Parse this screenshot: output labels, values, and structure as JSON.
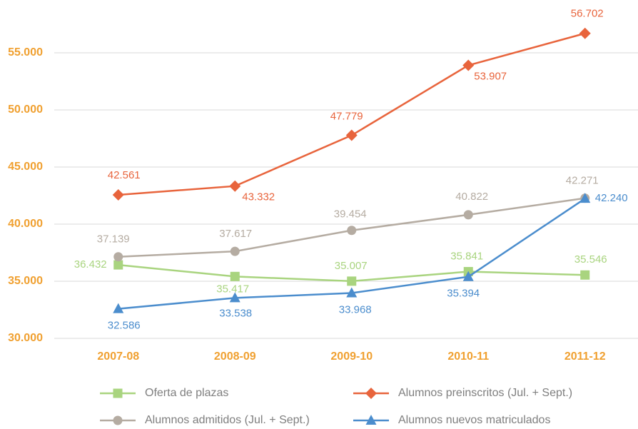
{
  "chart_data": {
    "type": "line",
    "categories": [
      "2007-08",
      "2008-09",
      "2009-10",
      "2010-11",
      "2011-12"
    ],
    "series": [
      {
        "name": "Oferta de plazas",
        "color": "#a9d47f",
        "marker": "square",
        "values": [
          36432,
          35417,
          35007,
          35841,
          35546
        ],
        "value_labels": [
          "36.432",
          "35.417",
          "35.007",
          "35.841",
          "35.546"
        ]
      },
      {
        "name": "Alumnos preinscritos (Jul. + Sept.)",
        "color": "#e8643c",
        "marker": "diamond",
        "values": [
          42561,
          43332,
          47779,
          53907,
          56702
        ],
        "value_labels": [
          "42.561",
          "43.332",
          "47.779",
          "53.907",
          "56.702"
        ]
      },
      {
        "name": "Alumnos admitidos (Jul. + Sept.)",
        "color": "#b5aca2",
        "marker": "circle",
        "values": [
          37139,
          37617,
          39454,
          40822,
          42271
        ],
        "value_labels": [
          "37.139",
          "37.617",
          "39.454",
          "40.822",
          "42.271"
        ]
      },
      {
        "name": "Alumnos nuevos matriculados",
        "color": "#4b8dcd",
        "marker": "triangle",
        "values": [
          32586,
          33538,
          33968,
          35394,
          42240
        ],
        "value_labels": [
          "32.586",
          "33.538",
          "33.968",
          "35.394",
          "42.240"
        ]
      }
    ],
    "ylim": [
      30000,
      58000
    ],
    "yticks": [
      {
        "value": 30000,
        "label": "30.000"
      },
      {
        "value": 35000,
        "label": "35.000"
      },
      {
        "value": 40000,
        "label": "40.000"
      },
      {
        "value": 45000,
        "label": "45.000"
      },
      {
        "value": 50000,
        "label": "50.000"
      },
      {
        "value": 55000,
        "label": "55.000"
      }
    ],
    "grid": true,
    "legend": "bottom"
  }
}
